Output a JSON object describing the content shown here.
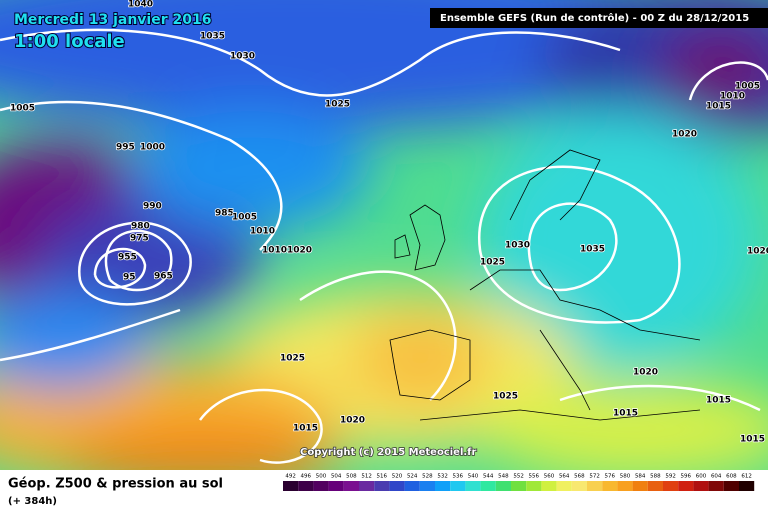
{
  "header": {
    "date": "Mercredi 13 janvier 2016",
    "time": "1:00 locale",
    "run": "Ensemble GEFS  (Run de contrôle)  - 00 Z du 28/12/2015",
    "copyright": "Copyright (c) 2015 Meteociel.fr"
  },
  "footer": {
    "title": "Géop. Z500 & pression au sol",
    "lead": "(+ 384h)"
  },
  "isobar_labels": [
    "1040",
    "1035",
    "1030",
    "1005",
    "1025",
    "995",
    "1000",
    "985",
    "990",
    "980",
    "975",
    "955",
    "95",
    "965",
    "1005",
    "1010",
    "1010",
    "1020",
    "1030",
    "1025",
    "1035",
    "1020",
    "1005",
    "1010",
    "1015",
    "1020",
    "1025",
    "1020",
    "1015",
    "1025",
    "1015",
    "1015",
    "1020",
    "1015"
  ],
  "scale": {
    "values": [
      492,
      496,
      500,
      504,
      508,
      512,
      516,
      520,
      524,
      528,
      532,
      536,
      540,
      544,
      548,
      552,
      556,
      560,
      564,
      568,
      572,
      576,
      580,
      584,
      588,
      592,
      596,
      600,
      604,
      608,
      612
    ],
    "colors": [
      "#2a0030",
      "#3e0048",
      "#520060",
      "#66007a",
      "#7a1090",
      "#6a2aa0",
      "#4a3cb0",
      "#3046c8",
      "#2060e0",
      "#1a80f0",
      "#10a0f8",
      "#20c8f0",
      "#30e0d0",
      "#30e8a0",
      "#40e070",
      "#70e040",
      "#a0e838",
      "#d0f040",
      "#f0f060",
      "#f8e870",
      "#f8d050",
      "#f8b830",
      "#f8a020",
      "#f08010",
      "#e86010",
      "#e04010",
      "#d02010",
      "#b01010",
      "#800808",
      "#500000",
      "#200000"
    ]
  }
}
